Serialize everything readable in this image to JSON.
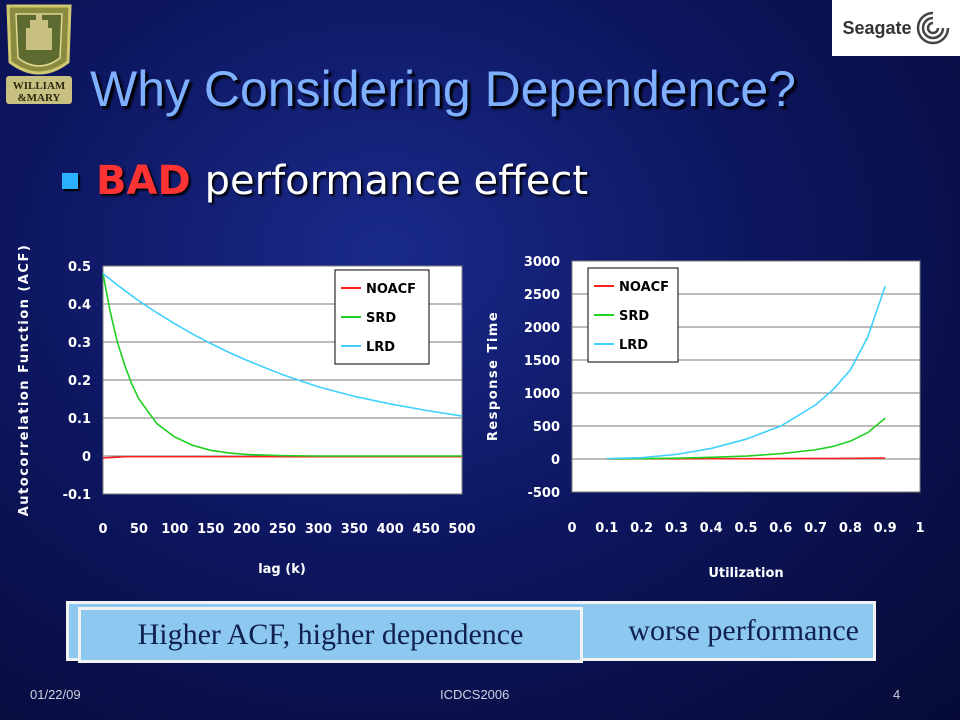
{
  "title": "Why Considering Dependence?",
  "bullet": {
    "bad": "BAD",
    "rest": "performance effect"
  },
  "logos": {
    "left_text_1": "WILLIAM",
    "left_text_2": "&MARY",
    "right_text": "Seagate"
  },
  "callout": {
    "front": "Higher ACF, higher dependence",
    "back": "worse performance"
  },
  "footer": {
    "date": "01/22/09",
    "conference": "ICDCS2006",
    "page": "4"
  },
  "chart_data": [
    {
      "type": "line",
      "xlabel": "lag (k)",
      "ylabel": "Autocorrelation Function (ACF)",
      "xlim": [
        0,
        500
      ],
      "ylim": [
        -0.1,
        0.5
      ],
      "x_ticks": [
        "0",
        "50",
        "100",
        "150",
        "200",
        "250",
        "300",
        "350",
        "400",
        "450",
        "500"
      ],
      "y_ticks": [
        "-0.1",
        "0",
        "0.1",
        "0.2",
        "0.3",
        "0.4",
        "0.5"
      ],
      "legend_position": "top-right",
      "x": [
        0,
        10,
        20,
        30,
        40,
        50,
        75,
        100,
        125,
        150,
        175,
        200,
        250,
        300,
        350,
        400,
        450,
        500
      ],
      "series": [
        {
          "name": "NOACF",
          "color": "#ff2020",
          "values": [
            -0.005,
            -0.004,
            -0.003,
            -0.002,
            -0.002,
            -0.002,
            -0.002,
            -0.002,
            -0.002,
            -0.002,
            -0.002,
            -0.002,
            -0.002,
            -0.002,
            -0.002,
            -0.002,
            -0.002,
            -0.002
          ]
        },
        {
          "name": "SRD",
          "color": "#20d020",
          "values": [
            0.48,
            0.38,
            0.3,
            0.24,
            0.19,
            0.15,
            0.085,
            0.05,
            0.028,
            0.015,
            0.008,
            0.004,
            0.001,
            0.0,
            0.0,
            0.0,
            0.0,
            0.0
          ]
        },
        {
          "name": "LRD",
          "color": "#40d0ff",
          "values": [
            0.48,
            0.465,
            0.45,
            0.436,
            0.422,
            0.408,
            0.377,
            0.348,
            0.321,
            0.296,
            0.273,
            0.252,
            0.214,
            0.182,
            0.157,
            0.137,
            0.12,
            0.105
          ]
        }
      ]
    },
    {
      "type": "line",
      "xlabel": "Utilization",
      "ylabel": "Response Time",
      "xlim": [
        0,
        1
      ],
      "ylim": [
        -500,
        3000
      ],
      "x_ticks": [
        "0",
        "0.1",
        "0.2",
        "0.3",
        "0.4",
        "0.5",
        "0.6",
        "0.7",
        "0.8",
        "0.9",
        "1"
      ],
      "y_ticks": [
        "-500",
        "0",
        "500",
        "1000",
        "1500",
        "2000",
        "2500",
        "3000"
      ],
      "legend_position": "top-left",
      "x": [
        0.1,
        0.2,
        0.3,
        0.4,
        0.5,
        0.6,
        0.7,
        0.75,
        0.8,
        0.85,
        0.9
      ],
      "series": [
        {
          "name": "NOACF",
          "color": "#ff2020",
          "values": [
            1,
            2,
            3,
            4,
            5,
            6,
            8,
            9,
            10,
            12,
            15
          ]
        },
        {
          "name": "SRD",
          "color": "#20d020",
          "values": [
            2,
            5,
            12,
            25,
            45,
            80,
            140,
            190,
            270,
            400,
            620
          ]
        },
        {
          "name": "LRD",
          "color": "#40d0ff",
          "values": [
            5,
            20,
            70,
            160,
            300,
            500,
            820,
            1050,
            1350,
            1850,
            2620
          ]
        }
      ]
    }
  ]
}
